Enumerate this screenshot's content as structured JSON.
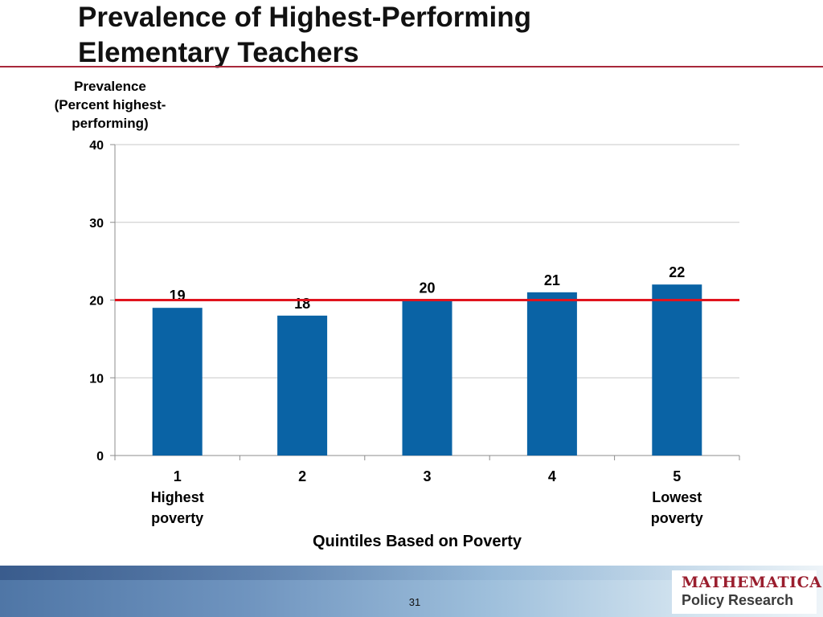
{
  "slide": {
    "title_line1": "Prevalence of Highest-Performing",
    "title_line2": "Elementary Teachers",
    "page_number": "31",
    "logo_line1": "MATHEMATICA",
    "logo_line2": "Policy Research"
  },
  "colors": {
    "bar": "#0a63a5",
    "reference_line": "#e0141e",
    "title_rule": "#a8283a"
  },
  "chart_data": {
    "type": "bar",
    "ylabel_lines": [
      "Prevalence",
      "(Percent highest-",
      "performing)"
    ],
    "xlabel": "Quintiles Based on Poverty",
    "categories": [
      {
        "label": "1",
        "sublabel": [
          "Highest",
          "poverty"
        ]
      },
      {
        "label": "2",
        "sublabel": []
      },
      {
        "label": "3",
        "sublabel": []
      },
      {
        "label": "4",
        "sublabel": []
      },
      {
        "label": "5",
        "sublabel": [
          "Lowest",
          "poverty"
        ]
      }
    ],
    "values": [
      19,
      18,
      20,
      21,
      22
    ],
    "data_labels": [
      "19",
      "18",
      "20",
      "21",
      "22"
    ],
    "ylim": [
      0,
      40
    ],
    "yticks": [
      0,
      10,
      20,
      30,
      40
    ],
    "reference_line": 20,
    "grid": true,
    "legend": "none"
  }
}
